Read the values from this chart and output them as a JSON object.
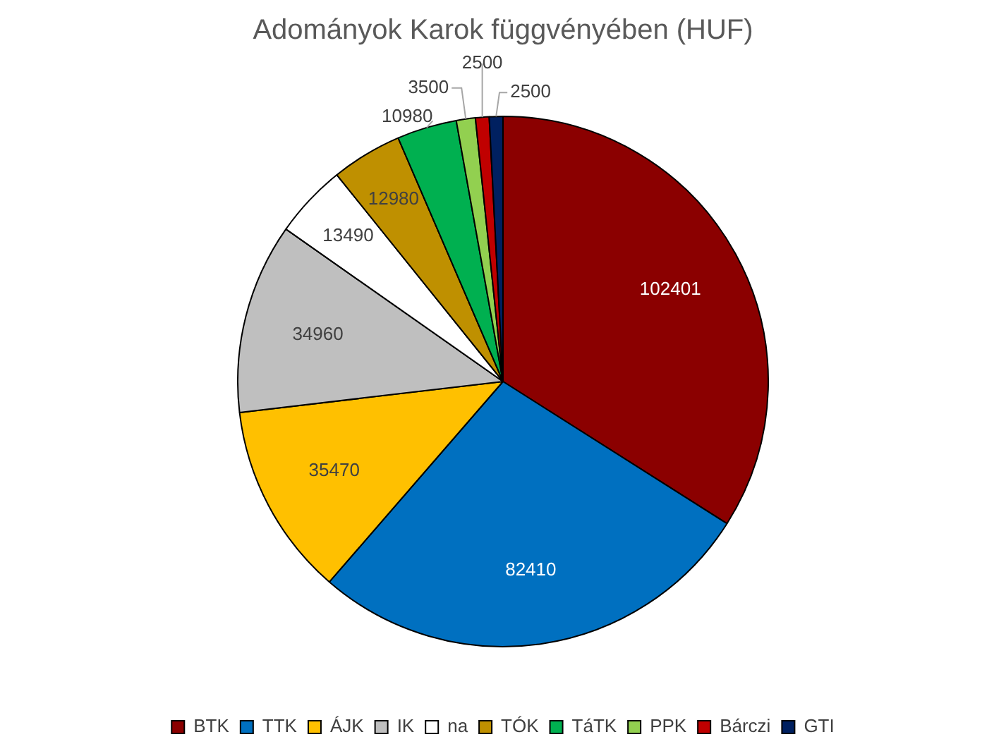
{
  "chart_data": {
    "type": "pie",
    "title": "Adományok Karok függvényében (HUF)",
    "categories": [
      "BTK",
      "TTK",
      "ÁJK",
      "IK",
      "na",
      "TÓK",
      "TáTK",
      "PPK",
      "Bárczi",
      "GTI"
    ],
    "values": [
      102401,
      82410,
      35470,
      34960,
      13490,
      12980,
      10980,
      3500,
      2500,
      2500
    ],
    "colors": [
      "#8b0000",
      "#0070c0",
      "#ffc000",
      "#bfbfbf",
      "#ffffff",
      "#bf9000",
      "#00b050",
      "#92d050",
      "#c00000",
      "#002060"
    ],
    "data_labels": true,
    "legend": "bottom"
  }
}
